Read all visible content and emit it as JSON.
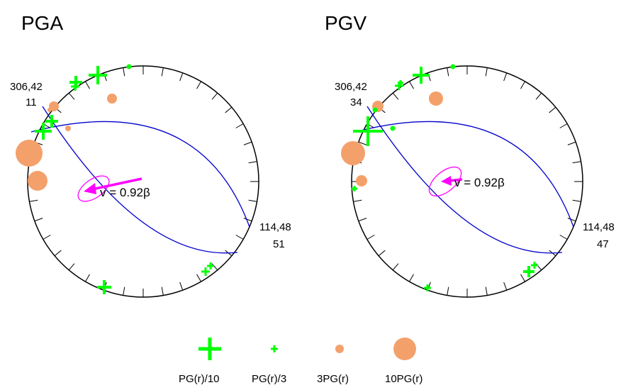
{
  "colors": {
    "amplified": "#00ff00",
    "deamplified": "#f4a06b",
    "nodal_plane": "#0000cc",
    "velocity": "#ff00ff",
    "outline": "#000000"
  },
  "panels": [
    {
      "title": "PGA",
      "label_top_line1": "306,42",
      "label_top_line2": "11",
      "label_right_line1": "114,48",
      "label_right_line2": "51",
      "velocity_text": "v = 0.92β"
    },
    {
      "title": "PGV",
      "label_top_line1": "306,42",
      "label_top_line2": "34",
      "label_right_line1": "114,48",
      "label_right_line2": "47",
      "velocity_text": "v = 0.92β"
    }
  ],
  "legend": [
    {
      "label": "PG(r)/10",
      "icon": "large-cross-icon"
    },
    {
      "label": "PG(r)/3",
      "icon": "small-cross-icon"
    },
    {
      "label": "3PG(r)",
      "icon": "small-circle-icon"
    },
    {
      "label": "10PG(r)",
      "icon": "large-circle-icon"
    }
  ]
}
